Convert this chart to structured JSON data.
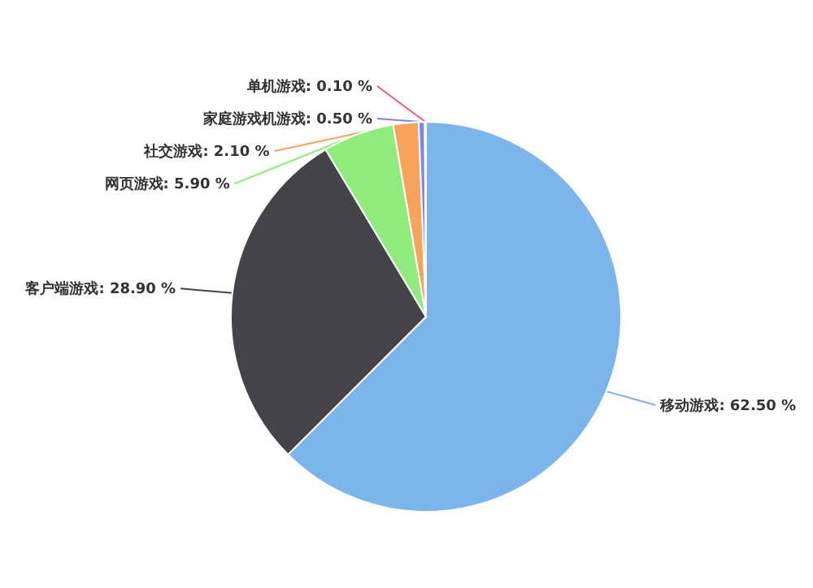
{
  "chart_data": {
    "type": "pie",
    "categories": [
      "移动游戏",
      "客户端游戏",
      "网页游戏",
      "社交游戏",
      "家庭游戏机游戏",
      "单机游戏"
    ],
    "values": [
      62.5,
      28.9,
      5.9,
      2.1,
      0.5,
      0.1
    ],
    "value_labels": [
      "62.50 %",
      "28.90 %",
      "5.90 %",
      "2.10 %",
      "0.50 %",
      "0.10 %"
    ],
    "colors": [
      "#7cb5ec",
      "#434348",
      "#90ed7d",
      "#f7a35c",
      "#8085e9",
      "#f15c80"
    ]
  }
}
